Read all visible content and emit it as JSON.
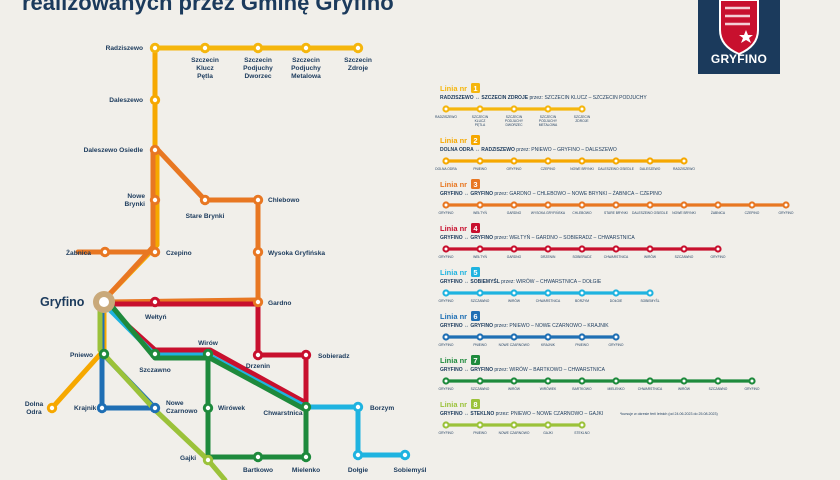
{
  "header": {
    "title": "realizowanych przez Gminę Gryfino"
  },
  "logo": {
    "text": "GRYFINO"
  },
  "colors": {
    "l1": "#f5b60d",
    "l2": "#f6a800",
    "l3": "#e87722",
    "l4": "#c8102e",
    "l5": "#1fb3e0",
    "l6": "#1f6fb4",
    "l7": "#1e8a3c",
    "l8": "#9bc23a",
    "text": "#1b3a5c",
    "bg": "#f1efea"
  },
  "stations": {
    "radziszewo": "Radziszewo",
    "szczecin_klucz": [
      "Szczecin",
      "Klucz",
      "Pętla"
    ],
    "szczecin_podjuchy_dworzec": [
      "Szczecin",
      "Podjuchy",
      "Dworzec"
    ],
    "szczecin_podjuchy_metalowa": [
      "Szczecin",
      "Podjuchy",
      "Metalowa"
    ],
    "szczecin_zdroje": [
      "Szczecin",
      "Zdroje"
    ],
    "daleszewo": "Daleszewo",
    "daleszewo_osiedle": "Daleszewo Osiedle",
    "nowe_brynki": [
      "Nowe",
      "Brynki"
    ],
    "stare_brynki": "Stare Brynki",
    "chlebowo": "Chlebowo",
    "zabnica": "Żabnica",
    "czepino": "Czepino",
    "wysoka_gryfinska": "Wysoka Gryfińska",
    "gryfino": "Gryfino",
    "weltyn": "Wełtyń",
    "gardno": "Gardno",
    "pniewo": "Pniewo",
    "szczawno": "Szczawno",
    "wirow": "Wirów",
    "drzenin": "Drzenin",
    "sobieradz": "Sobieradz",
    "dolna_odra": [
      "Dolna",
      "Odra"
    ],
    "krajnik": "Krajnik",
    "nowe_czarnowo": [
      "Nowe",
      "Czarnowo"
    ],
    "wirowek": "Wirówek",
    "chwarstnica": "Chwarstnica",
    "borzym": "Borzym",
    "gajki": "Gajki",
    "bartkowo": "Bartkowo",
    "mielenko": "Mielenko",
    "dolgie": "Dołgie",
    "sobiemysl": "Sobiemyśl"
  },
  "legend": {
    "line_word": "Linia nr",
    "lines": [
      {
        "num": "1",
        "route": "RADZISZEWO ↔ SZCZECIN ZDROJE",
        "via": "przez: SZCZECIN KLUCZ – SZCZECIN PODJUCHY",
        "stops": [
          "RADZISZEWO",
          "SZCZECIN KLUCZ PĘTLA",
          "SZCZECIN PODJUCHY DWORZEC",
          "SZCZECIN PODJUCHY METALOWA",
          "SZCZECIN ZDROJE"
        ]
      },
      {
        "num": "2",
        "route": "DOLNA ODRA ↔ RADZISZEWO",
        "via": "przez: PNIEWO – GRYFINO – DALESZEWO",
        "stops": [
          "DOLNA ODRA",
          "PNIEWO",
          "GRYFINO",
          "CZEPINO",
          "NOWE BRYNKI",
          "DALESZEWO OSIEDLE",
          "DALESZEWO",
          "RADZISZEWO"
        ]
      },
      {
        "num": "3",
        "route": "GRYFINO ↔ GRYFINO",
        "via": "przez: GARDNO – CHLEBOWO – NOWE BRYNKI – ŻABNICA – CZEPINO",
        "stops": [
          "GRYFINO",
          "WEŁTYŃ",
          "GARDNO",
          "WYSOKA GRYFIŃSKA",
          "CHLEBOWO",
          "STARE BRYNKI",
          "DALESZEWO OSIEDLE",
          "NOWE BRYNKI",
          "ŻABNICA",
          "CZEPINO",
          "GRYFINO"
        ]
      },
      {
        "num": "4",
        "route": "GRYFINO ↔ GRYFINO",
        "via": "przez: WEŁTYŃ – GARDNO – SOBIERADZ – CHWARSTNICA",
        "stops": [
          "GRYFINO",
          "WEŁTYŃ",
          "GARDNO",
          "DRZENIN",
          "SOBIERADZ",
          "CHWARSTNICA",
          "WIRÓW",
          "SZCZAWNO",
          "GRYFINO"
        ]
      },
      {
        "num": "5",
        "route": "GRYFINO ↔ SOBIEMYŚL",
        "via": "przez: WIRÓW – CHWARSTNICA – DOŁGIE",
        "stops": [
          "GRYFINO",
          "SZCZAWNO",
          "WIRÓW",
          "CHWARSTNICA",
          "BORZYM",
          "DOŁGIE",
          "SOBIEMYŚL"
        ]
      },
      {
        "num": "6",
        "route": "GRYFINO ↔ GRYFINO",
        "via": "przez: PNIEWO – NOWE CZARNOWO – KRAJNIK",
        "stops": [
          "GRYFINO",
          "PNIEWO",
          "NOWE CZARNOWO",
          "KRAJNIK",
          "PNIEWO",
          "GRYFINO"
        ]
      },
      {
        "num": "7",
        "route": "GRYFINO ↔ GRYFINO",
        "via": "przez: WIRÓW – BARTKOWO – CHWARSTNICA",
        "stops": [
          "GRYFINO",
          "SZCZAWNO",
          "WIRÓW",
          "WIRÓWEK",
          "BARTKOWO",
          "MIELENKO",
          "CHWARSTNICA",
          "WIRÓW",
          "SZCZAWNO",
          "GRYFINO"
        ]
      },
      {
        "num": "8",
        "route": "GRYFINO ↔ STEKLNO",
        "via": "przez: PNIEWO – NOWE CZARNOWO – GAJKI",
        "note": "*kursuje w okresie ferii letnich (od 24.06.2023 do 25.08.2023)",
        "stops": [
          "GRYFINO",
          "PNIEWO",
          "NOWE CZARNOWO",
          "GAJKI",
          "STEKLNO"
        ]
      }
    ]
  }
}
